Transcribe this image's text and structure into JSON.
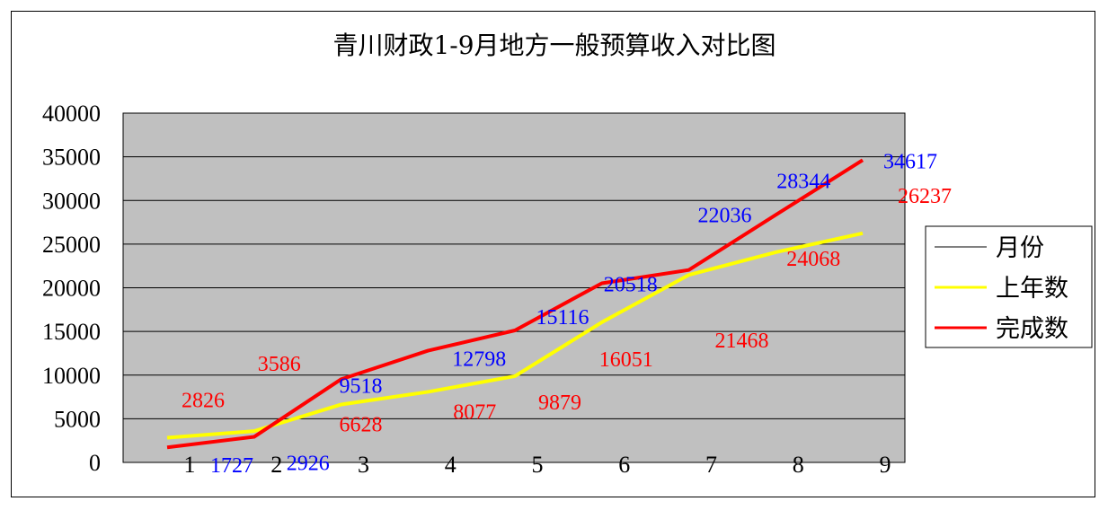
{
  "chart_data": {
    "type": "line",
    "title": "青川财政1-9月地方一般预算收入对比图",
    "categories": [
      "1",
      "2",
      "3",
      "4",
      "5",
      "6",
      "7",
      "8",
      "9"
    ],
    "ylim": [
      0,
      40000
    ],
    "yticks": [
      "0",
      "5000",
      "10000",
      "15000",
      "20000",
      "25000",
      "30000",
      "35000",
      "40000"
    ],
    "grid": true,
    "plot_background": "#c0c0c0",
    "legend_position": "right",
    "legend": [
      {
        "label": "月份",
        "color": "#000000"
      },
      {
        "label": "上年数",
        "color": "#ffff00"
      },
      {
        "label": "完成数",
        "color": "#ff0000"
      }
    ],
    "series": [
      {
        "name": "上年数",
        "color": "#ffff00",
        "values": [
          2826,
          3586,
          6628,
          8077,
          9879,
          16051,
          21468,
          24068,
          26237
        ]
      },
      {
        "name": "完成数",
        "color": "#ff0000",
        "values": [
          1727,
          2926,
          9518,
          12798,
          15116,
          20518,
          22036,
          28344,
          34617
        ]
      }
    ],
    "data_label_colors": {
      "上年数": "#ff0000",
      "完成数": "#0000ff"
    }
  }
}
